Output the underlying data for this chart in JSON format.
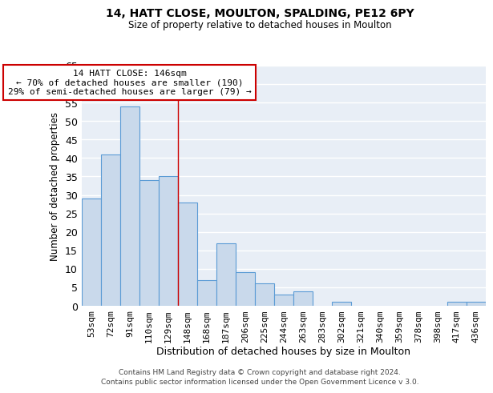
{
  "title1": "14, HATT CLOSE, MOULTON, SPALDING, PE12 6PY",
  "title2": "Size of property relative to detached houses in Moulton",
  "xlabel": "Distribution of detached houses by size in Moulton",
  "ylabel": "Number of detached properties",
  "bin_labels": [
    "53sqm",
    "72sqm",
    "91sqm",
    "110sqm",
    "129sqm",
    "148sqm",
    "168sqm",
    "187sqm",
    "206sqm",
    "225sqm",
    "244sqm",
    "263sqm",
    "283sqm",
    "302sqm",
    "321sqm",
    "340sqm",
    "359sqm",
    "378sqm",
    "398sqm",
    "417sqm",
    "436sqm"
  ],
  "bar_values": [
    29,
    41,
    54,
    34,
    35,
    28,
    7,
    17,
    9,
    6,
    3,
    4,
    0,
    1,
    0,
    0,
    0,
    0,
    0,
    1,
    1
  ],
  "bar_color": "#c9d9eb",
  "bar_edge_color": "#5b9bd5",
  "ylim": [
    0,
    65
  ],
  "yticks": [
    0,
    5,
    10,
    15,
    20,
    25,
    30,
    35,
    40,
    45,
    50,
    55,
    60,
    65
  ],
  "red_line_bin": 5,
  "annotation_line1": "14 HATT CLOSE: 146sqm",
  "annotation_line2": "← 70% of detached houses are smaller (190)",
  "annotation_line3": "29% of semi-detached houses are larger (79) →",
  "footer1": "Contains HM Land Registry data © Crown copyright and database right 2024.",
  "footer2": "Contains public sector information licensed under the Open Government Licence v 3.0.",
  "bg_color": "#e8eef6"
}
